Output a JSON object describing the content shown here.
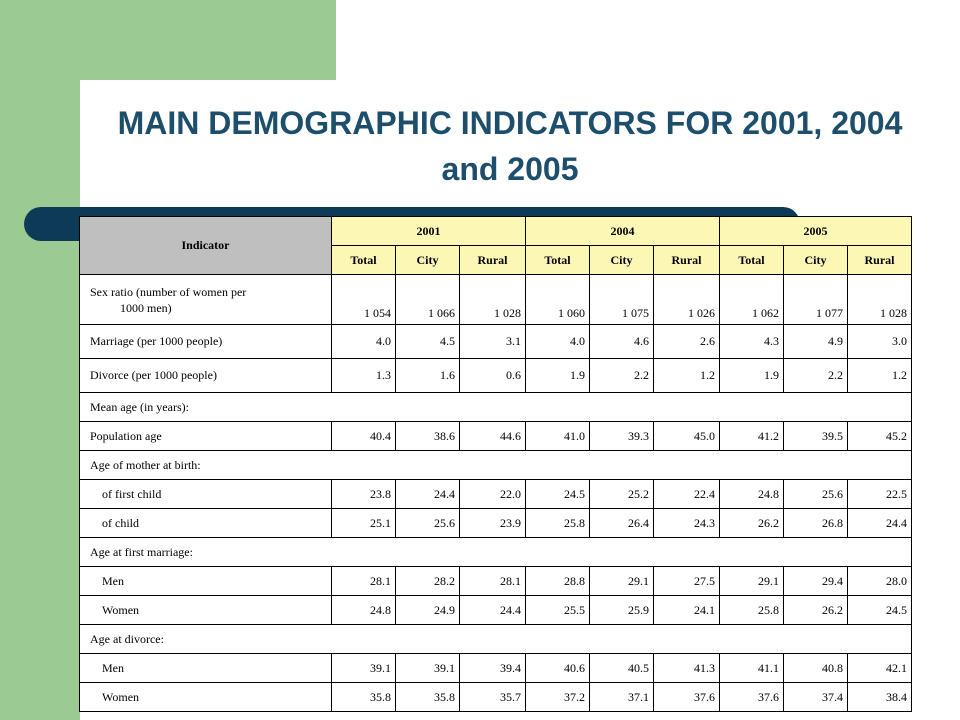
{
  "title": "MAIN DEMOGRAPHIC INDICATORS FOR 2001, 2004 and 2005",
  "colors": {
    "green": "#9bcb93",
    "navy": "#0d3a57",
    "title": "#1d4e6b",
    "header_yellow": "#fdf7b6",
    "header_gray": "#bfbfbf"
  },
  "table": {
    "indicator_header": "Indicator",
    "years": [
      "2001",
      "2004",
      "2005"
    ],
    "subheaders": [
      "Total",
      "City",
      "Rural",
      "Total",
      "City",
      "Rural",
      "Total",
      "City",
      "Rural"
    ],
    "rows": [
      {
        "label": "Sex ratio (number of women per",
        "label2": "1000 men)",
        "values": [
          "1 054",
          "1 066",
          "1 028",
          "1 060",
          "1 075",
          "1 026",
          "1 062",
          "1 077",
          "1 028"
        ]
      },
      {
        "label": "Marriage (per 1000 people)",
        "values": [
          "4.0",
          "4.5",
          "3.1",
          "4.0",
          "4.6",
          "2.6",
          "4.3",
          "4.9",
          "3.0"
        ]
      },
      {
        "label": "Divorce (per 1000 people)",
        "values": [
          "1.3",
          "1.6",
          "0.6",
          "1.9",
          "2.2",
          "1.2",
          "1.9",
          "2.2",
          "1.2"
        ]
      },
      {
        "label": "Mean age (in years):",
        "section": true
      },
      {
        "label": "Population age",
        "values": [
          "40.4",
          "38.6",
          "44.6",
          "41.0",
          "39.3",
          "45.0",
          "41.2",
          "39.5",
          "45.2"
        ]
      },
      {
        "label": "Age of mother at birth:",
        "section": true
      },
      {
        "label": "of first child",
        "indent": true,
        "values": [
          "23.8",
          "24.4",
          "22.0",
          "24.5",
          "25.2",
          "22.4",
          "24.8",
          "25.6",
          "22.5"
        ]
      },
      {
        "label": "of child",
        "indent": true,
        "values": [
          "25.1",
          "25.6",
          "23.9",
          "25.8",
          "26.4",
          "24.3",
          "26.2",
          "26.8",
          "24.4"
        ]
      },
      {
        "label": "Age at first marriage:",
        "section": true
      },
      {
        "label": "Men",
        "indent": true,
        "values": [
          "28.1",
          "28.2",
          "28.1",
          "28.8",
          "29.1",
          "27.5",
          "29.1",
          "29.4",
          "28.0"
        ]
      },
      {
        "label": "Women",
        "indent": true,
        "values": [
          "24.8",
          "24.9",
          "24.4",
          "25.5",
          "25.9",
          "24.1",
          "25.8",
          "26.2",
          "24.5"
        ]
      },
      {
        "label": "Age at divorce:",
        "section": true
      },
      {
        "label": "Men",
        "indent": true,
        "values": [
          "39.1",
          "39.1",
          "39.4",
          "40.6",
          "40.5",
          "41.3",
          "41.1",
          "40.8",
          "42.1"
        ]
      },
      {
        "label": "Women",
        "indent": true,
        "values": [
          "35.8",
          "35.8",
          "35.7",
          "37.2",
          "37.1",
          "37.6",
          "37.6",
          "37.4",
          "38.4"
        ]
      }
    ]
  }
}
